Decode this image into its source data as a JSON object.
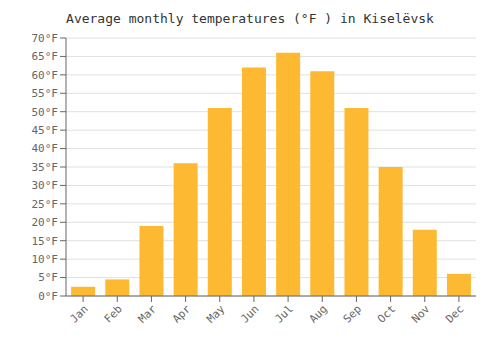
{
  "chart_data": {
    "type": "bar",
    "title": "Average monthly temperatures (°F ) in Kiselëvsk",
    "categories": [
      "Jan",
      "Feb",
      "Mar",
      "Apr",
      "May",
      "Jun",
      "Jul",
      "Aug",
      "Sep",
      "Oct",
      "Nov",
      "Dec"
    ],
    "values": [
      2.5,
      4.5,
      19,
      36,
      51,
      62,
      66,
      61,
      51,
      35,
      18,
      6
    ],
    "color": "#FDB931",
    "ylim": [
      0,
      70
    ],
    "yticks": [
      {
        "value": 0,
        "label": "0°F"
      },
      {
        "value": 5,
        "label": "5°F"
      },
      {
        "value": 10,
        "label": "10°F"
      },
      {
        "value": 15,
        "label": "15°F"
      },
      {
        "value": 20,
        "label": "20°F"
      },
      {
        "value": 25,
        "label": "25°F"
      },
      {
        "value": 30,
        "label": "30°F"
      },
      {
        "value": 35,
        "label": "35°F"
      },
      {
        "value": 40,
        "label": "40°F"
      },
      {
        "value": 45,
        "label": "45°F"
      },
      {
        "value": 50,
        "label": "50°F"
      },
      {
        "value": 55,
        "label": "55°F"
      },
      {
        "value": 60,
        "label": "60°F"
      },
      {
        "value": 65,
        "label": "65°F"
      },
      {
        "value": 70,
        "label": "70°F"
      }
    ],
    "grid": true
  }
}
